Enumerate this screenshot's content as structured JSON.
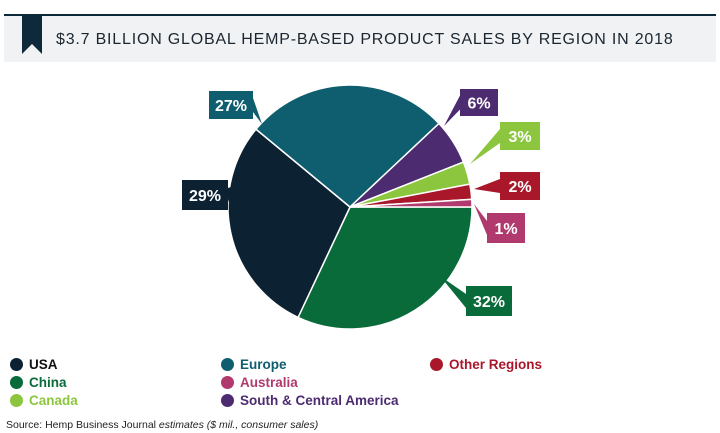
{
  "title": "$3.7 BILLION GLOBAL HEMP-BASED PRODUCT SALES BY REGION IN 2018",
  "source": {
    "prefix": "Source: Hemp Business Journal",
    "suffix": " estimates ($ mil., consumer sales)"
  },
  "colors": {
    "header_rule": "#0e2a3a",
    "bookmark": "#0e2a3a",
    "title_bg": "#f1f2f3"
  },
  "chart_data": {
    "type": "pie",
    "title": "$3.7 BILLION GLOBAL HEMP-BASED PRODUCT SALES BY REGION IN 2018",
    "unit": "%",
    "slices": [
      {
        "name": "China",
        "value": 32,
        "label": "32%",
        "color": "#0a6b3a",
        "text_color": "#0a6b3a"
      },
      {
        "name": "USA",
        "value": 29,
        "label": "29%",
        "color": "#0c2233",
        "text_color": "#111111"
      },
      {
        "name": "Europe",
        "value": 27,
        "label": "27%",
        "color": "#0f5e6f",
        "text_color": "#0f5e6f"
      },
      {
        "name": "South & Central America",
        "value": 6,
        "label": "6%",
        "color": "#4d2b70",
        "text_color": "#4d2b70"
      },
      {
        "name": "Canada",
        "value": 3,
        "label": "3%",
        "color": "#8cc63f",
        "text_color": "#8cc63f"
      },
      {
        "name": "Other Regions",
        "value": 2,
        "label": "2%",
        "color": "#a8182a",
        "text_color": "#a8182a"
      },
      {
        "name": "Australia",
        "value": 1,
        "label": "1%",
        "color": "#b03a6e",
        "text_color": "#b03a6e"
      }
    ],
    "legend": [
      {
        "name": "USA",
        "color": "#0c2233",
        "text_color": "#111111"
      },
      {
        "name": "China",
        "color": "#0a6b3a",
        "text_color": "#0a6b3a"
      },
      {
        "name": "Canada",
        "color": "#8cc63f",
        "text_color": "#8cc63f"
      },
      {
        "name": "Europe",
        "color": "#0f5e6f",
        "text_color": "#0f5e6f"
      },
      {
        "name": "Australia",
        "color": "#b03a6e",
        "text_color": "#b03a6e"
      },
      {
        "name": "South & Central America",
        "color": "#4d2b70",
        "text_color": "#4d2b70"
      },
      {
        "name": "Other Regions",
        "color": "#a8182a",
        "text_color": "#a8182a"
      }
    ],
    "legend_placement": "bottom"
  }
}
